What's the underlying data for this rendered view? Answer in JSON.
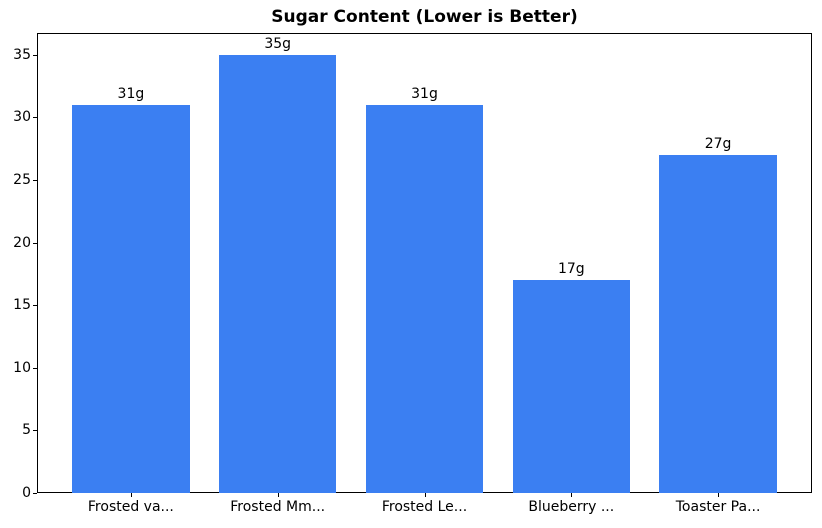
{
  "chart_data": {
    "type": "bar",
    "title": "Sugar Content (Lower is Better)",
    "categories": [
      "Frosted va...",
      "Frosted Mm...",
      "Frosted Le...",
      "Blueberry ...",
      "Toaster Pa..."
    ],
    "values": [
      31,
      35,
      31,
      17,
      27
    ],
    "value_labels": [
      "31g",
      "35g",
      "31g",
      "17g",
      "27g"
    ],
    "xlabel": "",
    "ylabel": "",
    "ylim": [
      0,
      36.75
    ],
    "xlim": [
      -0.64,
      4.64
    ],
    "yticks": [
      0,
      5,
      10,
      15,
      20,
      25,
      30,
      35
    ],
    "bar_width": 0.8,
    "grid": false,
    "legend": "none",
    "bar_color": "#3b7ff2",
    "axis_color": "#000000",
    "text_color": "#000000",
    "background_color": "#ffffff"
  }
}
